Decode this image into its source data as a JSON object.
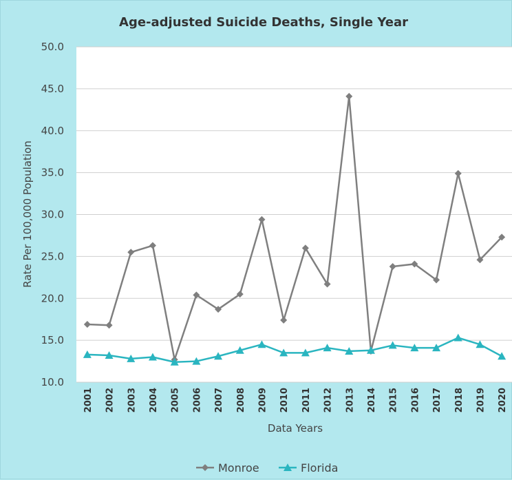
{
  "chart_data": {
    "type": "line",
    "title": "Age-adjusted Suicide Deaths, Single Year",
    "xlabel": "Data Years",
    "ylabel": "Rate Per 100,000 Population",
    "ylim": [
      10.0,
      50.0
    ],
    "yticks": [
      "10.0",
      "15.0",
      "20.0",
      "25.0",
      "30.0",
      "35.0",
      "40.0",
      "45.0",
      "50.0"
    ],
    "categories": [
      "2001",
      "2002",
      "2003",
      "2004",
      "2005",
      "2006",
      "2007",
      "2008",
      "2009",
      "2010",
      "2011",
      "2012",
      "2013",
      "2014",
      "2015",
      "2016",
      "2017",
      "2018",
      "2019",
      "2020"
    ],
    "grid": true,
    "legend_position": "bottom",
    "series": [
      {
        "name": "Monroe",
        "color": "#7f7f7f",
        "marker": "diamond",
        "values": [
          16.9,
          16.8,
          25.5,
          26.3,
          12.7,
          20.4,
          18.7,
          20.5,
          29.4,
          17.4,
          26.0,
          21.7,
          44.1,
          13.7,
          23.8,
          24.1,
          22.2,
          34.9,
          24.6,
          27.3
        ]
      },
      {
        "name": "Florida",
        "color": "#2ab5c0",
        "marker": "triangle",
        "values": [
          13.3,
          13.2,
          12.8,
          13.0,
          12.4,
          12.5,
          13.1,
          13.8,
          14.5,
          13.5,
          13.5,
          14.1,
          13.7,
          13.8,
          14.4,
          14.1,
          14.1,
          15.3,
          14.5,
          13.1
        ]
      }
    ]
  }
}
